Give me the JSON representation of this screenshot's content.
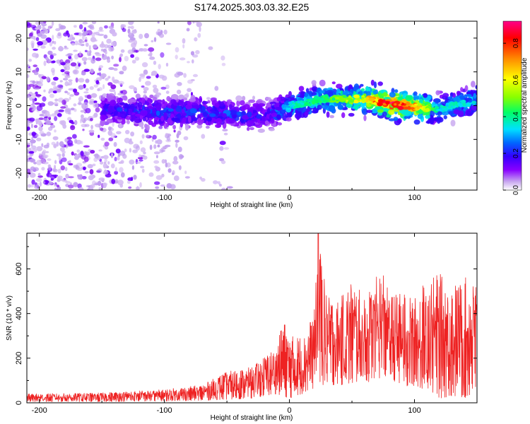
{
  "title": "S174.2025.303.03.32.E25",
  "chart_data": [
    {
      "type": "heatmap",
      "name": "spectrogram",
      "xlabel": "Height of straight line (km)",
      "ylabel": "Frequency (Hz)",
      "xlim": [
        -210,
        150
      ],
      "ylim": [
        -25,
        25
      ],
      "xticks": [
        -200,
        -100,
        0,
        100
      ],
      "xtick_labels": [
        "-200",
        "-100",
        "0",
        "100"
      ],
      "yticks": [
        -20,
        -10,
        0,
        10,
        20
      ],
      "ytick_labels": [
        "-20",
        "-10",
        "0",
        "10",
        "20"
      ],
      "colorbar": {
        "label": "Normalized spectral amplitude",
        "range": [
          0,
          0.92
        ],
        "ticks": [
          0,
          0.2,
          0.4,
          0.6,
          0.8
        ],
        "tick_labels": [
          "0.0",
          "0.2",
          "0.4",
          "0.6",
          "0.8"
        ],
        "colormap": [
          "#ffffff",
          "#c8a8f0",
          "#8800ff",
          "#3300ff",
          "#0066ff",
          "#00e0ff",
          "#00ff66",
          "#88ff00",
          "#ffff00",
          "#ff8800",
          "#ff0000",
          "#ff0088"
        ]
      },
      "band": {
        "center_freq_hz": [
          [
            -150,
            -1
          ],
          [
            -100,
            -2
          ],
          [
            -60,
            -2
          ],
          [
            -30,
            -3
          ],
          [
            -10,
            -2
          ],
          [
            0,
            0
          ],
          [
            30,
            2
          ],
          [
            60,
            2
          ],
          [
            90,
            0
          ],
          [
            120,
            -1
          ],
          [
            150,
            2
          ]
        ],
        "peak_amplitude": [
          [
            -150,
            0.2
          ],
          [
            -100,
            0.25
          ],
          [
            -50,
            0.25
          ],
          [
            -20,
            0.2
          ],
          [
            0,
            0.35
          ],
          [
            30,
            0.45
          ],
          [
            60,
            0.6
          ],
          [
            80,
            0.85
          ],
          [
            100,
            0.7
          ],
          [
            120,
            0.35
          ],
          [
            150,
            0.4
          ]
        ]
      }
    },
    {
      "type": "line",
      "name": "snr",
      "xlabel": "Height of straight line (km)",
      "ylabel": "SNR (10 * v/v)",
      "xlim": [
        -210,
        150
      ],
      "ylim": [
        0,
        760
      ],
      "xticks": [
        -200,
        -100,
        0,
        100
      ],
      "xtick_labels": [
        "-200",
        "-100",
        "0",
        "100"
      ],
      "yticks": [
        0,
        200,
        400,
        600
      ],
      "ytick_labels": [
        "0",
        "200",
        "400",
        "600"
      ],
      "color": "#ee2222",
      "envelope": {
        "x": [
          -210,
          -150,
          -100,
          -70,
          -50,
          -30,
          -20,
          -10,
          -5,
          0,
          10,
          20,
          23,
          30,
          40,
          50,
          60,
          70,
          75,
          80,
          90,
          100,
          110,
          120,
          130,
          140,
          150
        ],
        "max": [
          40,
          45,
          60,
          80,
          140,
          160,
          210,
          250,
          380,
          300,
          300,
          420,
          760,
          480,
          460,
          560,
          470,
          570,
          600,
          480,
          500,
          470,
          560,
          580,
          530,
          560,
          570
        ],
        "min": [
          5,
          5,
          8,
          10,
          15,
          20,
          30,
          40,
          30,
          20,
          40,
          60,
          80,
          80,
          80,
          80,
          90,
          100,
          120,
          100,
          80,
          60,
          60,
          20,
          30,
          20,
          40
        ]
      }
    }
  ]
}
